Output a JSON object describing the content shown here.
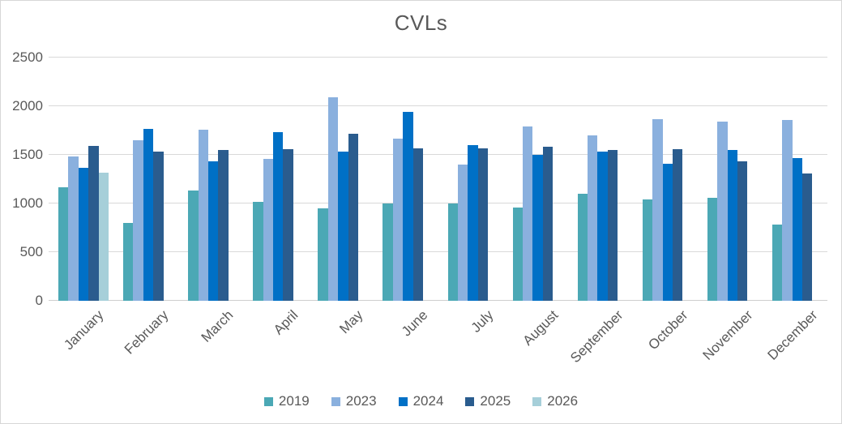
{
  "chart_data": {
    "type": "bar",
    "title": "CVLs",
    "categories": [
      "January",
      "February",
      "March",
      "April",
      "May",
      "June",
      "July",
      "August",
      "September",
      "October",
      "November",
      "December"
    ],
    "series": [
      {
        "name": "2019",
        "color": "#4BA8B5",
        "values": [
          1170,
          800,
          1130,
          1020,
          950,
          1000,
          1000,
          960,
          1100,
          1040,
          1060,
          780
        ]
      },
      {
        "name": "2023",
        "color": "#8AB0DE",
        "values": [
          1480,
          1650,
          1760,
          1460,
          2090,
          1670,
          1400,
          1790,
          1700,
          1870,
          1840,
          1860
        ]
      },
      {
        "name": "2024",
        "color": "#0070C6",
        "values": [
          1370,
          1770,
          1430,
          1730,
          1530,
          1940,
          1600,
          1500,
          1530,
          1410,
          1550,
          1470
        ]
      },
      {
        "name": "2025",
        "color": "#2A5C8E",
        "values": [
          1590,
          1530,
          1550,
          1560,
          1720,
          1570,
          1570,
          1580,
          1550,
          1560,
          1430,
          1310
        ]
      },
      {
        "name": "2026",
        "color": "#A6CFD9",
        "values": [
          1320,
          null,
          null,
          null,
          null,
          null,
          null,
          null,
          null,
          null,
          null,
          null
        ]
      }
    ],
    "ylim": [
      0,
      2500
    ],
    "yticks": [
      0,
      500,
      1000,
      1500,
      2000,
      2500
    ],
    "grid": true,
    "legend_position": "bottom",
    "styles": {
      "grid_color": "#D9D9D9",
      "zero_line_color": "#CFCFCF",
      "text_color": "#595959",
      "background": "#FFFFFF",
      "border_color": "#D7D7D7"
    }
  }
}
